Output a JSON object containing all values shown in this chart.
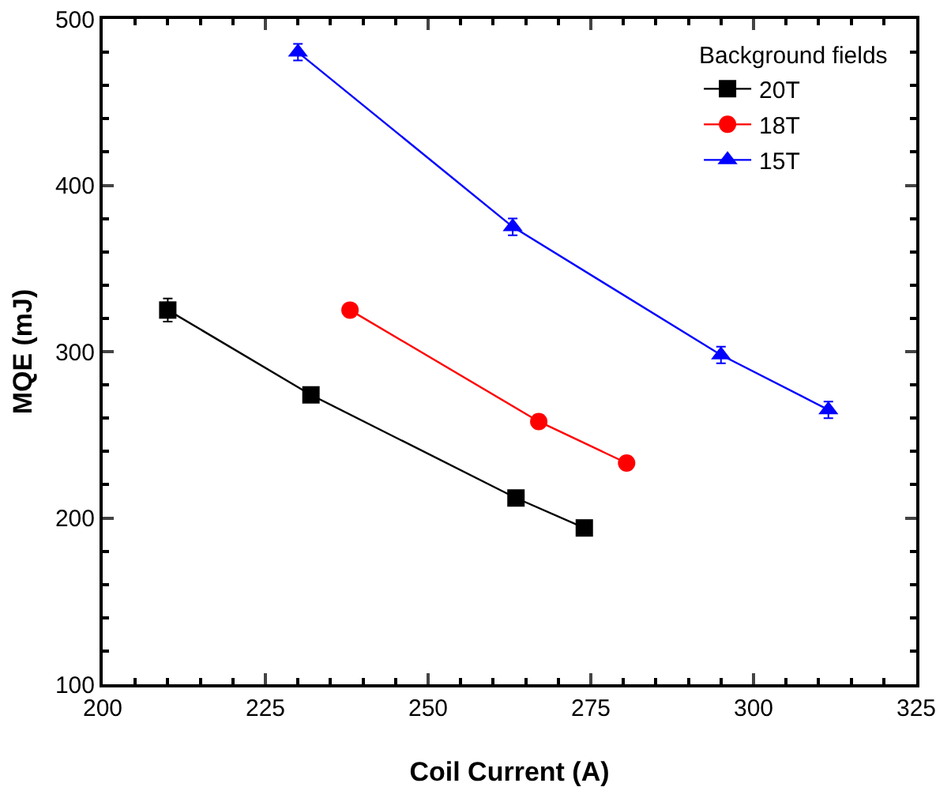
{
  "chart_data": {
    "type": "line",
    "xlabel": "Coil Current (A)",
    "ylabel": "MQE (mJ)",
    "legend_title": "Background fields",
    "legend": "top right",
    "line_style": "solid",
    "grid": false,
    "xlim": [
      200,
      325
    ],
    "xticks": [
      200,
      225,
      250,
      275,
      300,
      325
    ],
    "ylim": [
      100,
      500
    ],
    "yticks": [
      100,
      200,
      300,
      400,
      500
    ],
    "series": [
      {
        "name": "20T",
        "color": "#000000",
        "marker": "square",
        "x": [
          210,
          232,
          263.5,
          274
        ],
        "values": [
          325,
          274,
          212,
          194
        ],
        "errors": [
          7,
          null,
          null,
          null
        ]
      },
      {
        "name": "18T",
        "color": "#ff0000",
        "marker": "circle",
        "x": [
          238,
          267,
          280.5
        ],
        "values": [
          325,
          258,
          233
        ]
      },
      {
        "name": "15T",
        "color": "#0000ff",
        "marker": "triangle",
        "x": [
          230,
          263,
          295,
          311.5
        ],
        "values": [
          480,
          375,
          298,
          265
        ],
        "errors": [
          5,
          5,
          5,
          5
        ]
      }
    ]
  }
}
